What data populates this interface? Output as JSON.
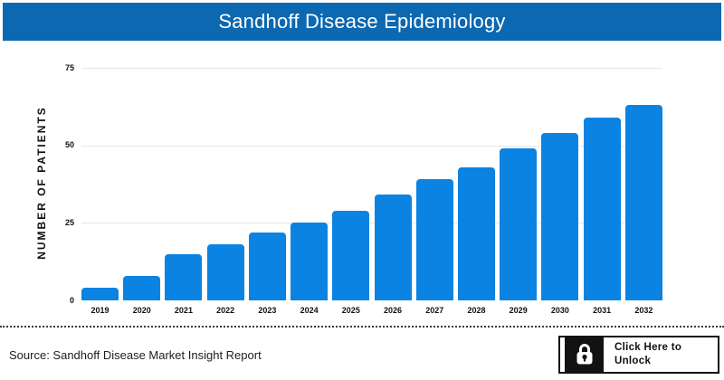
{
  "header": {
    "title": "Sandhoff Disease Epidemiology",
    "bg_color": "#0b68b1",
    "text_color": "#ffffff"
  },
  "chart_data": {
    "type": "bar",
    "title": "Sandhoff Disease Epidemiology",
    "categories": [
      "2019",
      "2020",
      "2021",
      "2022",
      "2023",
      "2024",
      "2025",
      "2026",
      "2027",
      "2028",
      "2029",
      "2030",
      "2031",
      "2032"
    ],
    "values": [
      4,
      8,
      15,
      18,
      22,
      25,
      29,
      34,
      39,
      43,
      49,
      54,
      59,
      63
    ],
    "xlabel": "",
    "ylabel": "NUMBER OF PATIENTS",
    "yticks": [
      0,
      25,
      50,
      75
    ],
    "ylim": [
      0,
      75
    ],
    "grid": true,
    "legend": false,
    "bar_color": "#0b83e2",
    "gridline_color": "#e7e7e7"
  },
  "footer": {
    "source_text": "Source: Sandhoff Disease Market Insight Report",
    "unlock_button": {
      "line1": "Click Here to",
      "line2": "Unlock",
      "icon": "lock-icon"
    }
  }
}
